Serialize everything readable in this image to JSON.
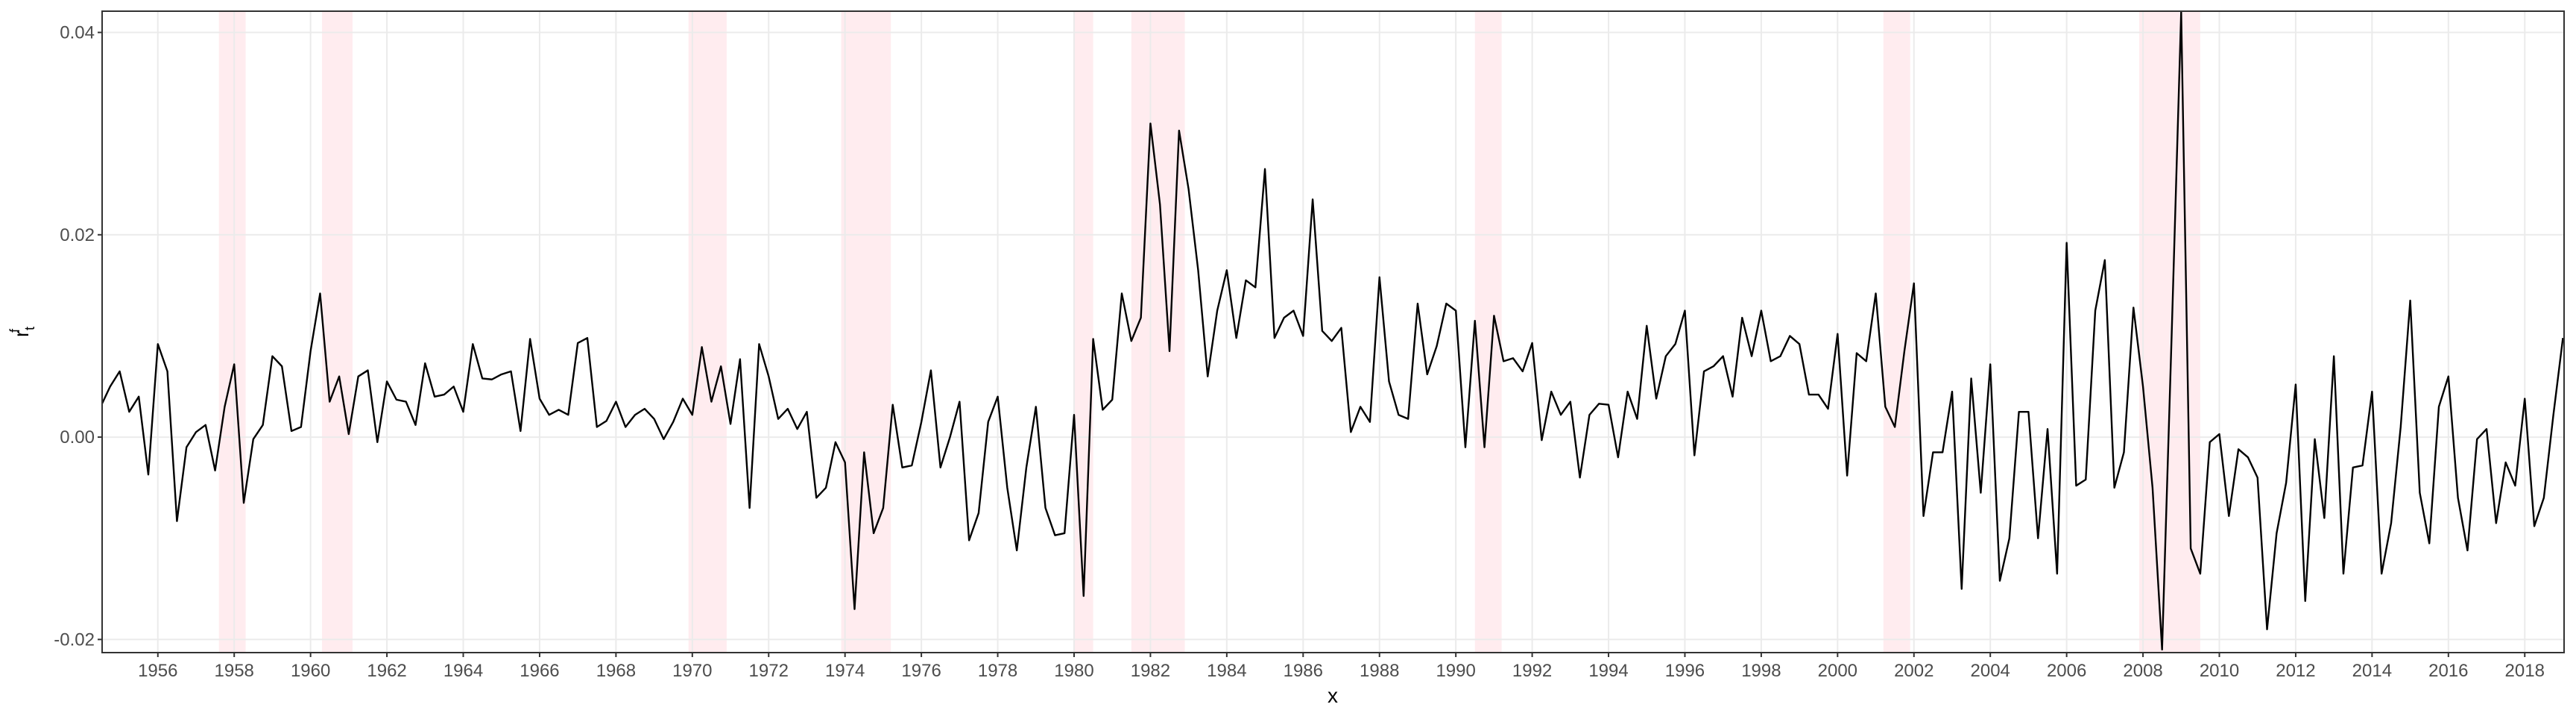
{
  "chart_data": {
    "type": "line",
    "x_label": "x",
    "y_label": "r",
    "y_label_sub": "t",
    "y_label_sup": "f",
    "xlim": [
      1954.54,
      2019.03
    ],
    "ylim": [
      -0.0213,
      0.0421
    ],
    "xticks": [
      1956,
      1958,
      1960,
      1962,
      1964,
      1966,
      1968,
      1970,
      1972,
      1974,
      1976,
      1978,
      1980,
      1982,
      1984,
      1986,
      1988,
      1990,
      1992,
      1994,
      1996,
      1998,
      2000,
      2002,
      2004,
      2006,
      2008,
      2010,
      2012,
      2014,
      2016,
      2018
    ],
    "yticks": [
      -0.02,
      {
        "value": 0,
        "label": "0.00"
      },
      0.02,
      0.04
    ],
    "grid": true,
    "shaded_regions": [
      [
        1957.6,
        1958.3
      ],
      [
        1960.3,
        1961.1
      ],
      [
        1969.9,
        1970.9
      ],
      [
        1973.9,
        1975.2
      ],
      [
        1980.0,
        1980.5
      ],
      [
        1981.5,
        1982.9
      ],
      [
        1990.5,
        1991.2
      ],
      [
        2001.2,
        2001.9
      ],
      [
        2007.9,
        2009.5
      ]
    ],
    "shade_color": "#ffc0cb",
    "x": [
      1954.5,
      1954.75,
      1955,
      1955.25,
      1955.5,
      1955.75,
      1956,
      1956.25,
      1956.5,
      1956.75,
      1957,
      1957.25,
      1957.5,
      1957.75,
      1958,
      1958.25,
      1958.5,
      1958.75,
      1959,
      1959.25,
      1959.5,
      1959.75,
      1960,
      1960.25,
      1960.5,
      1960.75,
      1961,
      1961.25,
      1961.5,
      1961.75,
      1962,
      1962.25,
      1962.5,
      1962.75,
      1963,
      1963.25,
      1963.5,
      1963.75,
      1964,
      1964.25,
      1964.5,
      1964.75,
      1965,
      1965.25,
      1965.5,
      1965.75,
      1966,
      1966.25,
      1966.5,
      1966.75,
      1967,
      1967.25,
      1967.5,
      1967.75,
      1968,
      1968.25,
      1968.5,
      1968.75,
      1969,
      1969.25,
      1969.5,
      1969.75,
      1970,
      1970.25,
      1970.5,
      1970.75,
      1971,
      1971.25,
      1971.5,
      1971.75,
      1972,
      1972.25,
      1972.5,
      1972.75,
      1973,
      1973.25,
      1973.5,
      1973.75,
      1974,
      1974.25,
      1974.5,
      1974.75,
      1975,
      1975.25,
      1975.5,
      1975.75,
      1976,
      1976.25,
      1976.5,
      1976.75,
      1977,
      1977.25,
      1977.5,
      1977.75,
      1978,
      1978.25,
      1978.5,
      1978.75,
      1979,
      1979.25,
      1979.5,
      1979.75,
      1980,
      1980.25,
      1980.5,
      1980.75,
      1981,
      1981.25,
      1981.5,
      1981.75,
      1982,
      1982.25,
      1982.5,
      1982.75,
      1983,
      1983.25,
      1983.5,
      1983.75,
      1984,
      1984.25,
      1984.5,
      1984.75,
      1985,
      1985.25,
      1985.5,
      1985.75,
      1986,
      1986.25,
      1986.5,
      1986.75,
      1987,
      1987.25,
      1987.5,
      1987.75,
      1988,
      1988.25,
      1988.5,
      1988.75,
      1989,
      1989.25,
      1989.5,
      1989.75,
      1990,
      1990.25,
      1990.5,
      1990.75,
      1991,
      1991.25,
      1991.5,
      1991.75,
      1992,
      1992.25,
      1992.5,
      1992.75,
      1993,
      1993.25,
      1993.5,
      1993.75,
      1994,
      1994.25,
      1994.5,
      1994.75,
      1995,
      1995.25,
      1995.5,
      1995.75,
      1996,
      1996.25,
      1996.5,
      1996.75,
      1997,
      1997.25,
      1997.5,
      1997.75,
      1998,
      1998.25,
      1998.5,
      1998.75,
      1999,
      1999.25,
      1999.5,
      1999.75,
      2000,
      2000.25,
      2000.5,
      2000.75,
      2001,
      2001.25,
      2001.5,
      2001.75,
      2002,
      2002.25,
      2002.5,
      2002.75,
      2003,
      2003.25,
      2003.5,
      2003.75,
      2004,
      2004.25,
      2004.5,
      2004.75,
      2005,
      2005.25,
      2005.5,
      2005.75,
      2006,
      2006.25,
      2006.5,
      2006.75,
      2007,
      2007.25,
      2007.5,
      2007.75,
      2008,
      2008.25,
      2008.5,
      2008.75,
      2009,
      2009.25,
      2009.5,
      2009.75,
      2010,
      2010.25,
      2010.5,
      2010.75,
      2011,
      2011.25,
      2011.5,
      2011.75,
      2012,
      2012.25,
      2012.5,
      2012.75,
      2013,
      2013.25,
      2013.5,
      2013.75,
      2014,
      2014.25,
      2014.5,
      2014.75,
      2015,
      2015.25,
      2015.5,
      2015.75,
      2016,
      2016.25,
      2016.5,
      2016.75,
      2017,
      2017.25,
      2017.5,
      2017.75,
      2018,
      2018.25,
      2018.5,
      2018.75,
      2019
    ],
    "color": "#000000",
    "values": [
      0.003,
      0.005,
      0.0065,
      0.0025,
      0.004,
      -0.0037,
      0.0092,
      0.0065,
      -0.0083,
      -0.001,
      0.0005,
      0.0012,
      -0.0033,
      0.003,
      0.0072,
      -0.0065,
      -0.0002,
      0.0012,
      0.008,
      0.007,
      0.0006,
      0.001,
      0.0085,
      0.0142,
      0.0035,
      0.006,
      0.0003,
      0.006,
      0.0066,
      -0.0005,
      0.0055,
      0.0037,
      0.0035,
      0.0012,
      0.0073,
      0.004,
      0.0042,
      0.005,
      0.0025,
      0.0092,
      0.0058,
      0.0057,
      0.0062,
      0.0065,
      0.0006,
      0.0097,
      0.0038,
      0.0022,
      0.0027,
      0.0022,
      0.0093,
      0.0098,
      0.001,
      0.0016,
      0.0035,
      0.001,
      0.0022,
      0.0028,
      0.0018,
      -0.0002,
      0.0015,
      0.0038,
      0.0022,
      0.0089,
      0.0035,
      0.007,
      0.0013,
      0.0077,
      -0.007,
      0.0092,
      0.006,
      0.0018,
      0.0028,
      0.0008,
      0.0025,
      -0.006,
      -0.005,
      -0.0005,
      -0.0025,
      -0.017,
      -0.0015,
      -0.0095,
      -0.007,
      0.0032,
      -0.003,
      -0.0028,
      0.0015,
      0.0066,
      -0.003,
      0.0,
      0.0035,
      -0.0102,
      -0.0075,
      0.0015,
      0.004,
      -0.005,
      -0.0112,
      -0.003,
      0.003,
      -0.007,
      -0.0097,
      -0.0095,
      0.0022,
      -0.0157,
      0.0097,
      0.0027,
      0.0037,
      0.0142,
      0.0095,
      0.0118,
      0.031,
      0.023,
      0.0085,
      0.0303,
      0.0245,
      0.0165,
      0.006,
      0.0125,
      0.0165,
      0.0098,
      0.0155,
      0.0148,
      0.0265,
      0.0098,
      0.0118,
      0.0125,
      0.01,
      0.0235,
      0.0105,
      0.0095,
      0.0108,
      0.0005,
      0.003,
      0.0015,
      0.0158,
      0.0055,
      0.0022,
      0.0018,
      0.0132,
      0.0062,
      0.009,
      0.0132,
      0.0125,
      -0.001,
      0.0115,
      -0.001,
      0.012,
      0.0075,
      0.0078,
      0.0065,
      0.0093,
      -0.0003,
      0.0045,
      0.0022,
      0.0035,
      -0.004,
      0.0022,
      0.0033,
      0.0032,
      -0.002,
      0.0045,
      0.0018,
      0.011,
      0.0038,
      0.008,
      0.0092,
      0.0125,
      -0.0018,
      0.0065,
      0.007,
      0.008,
      0.004,
      0.0118,
      0.008,
      0.0125,
      0.0075,
      0.008,
      0.01,
      0.0092,
      0.0042,
      0.0042,
      0.0028,
      0.0102,
      -0.0038,
      0.0083,
      0.0075,
      0.0142,
      0.003,
      0.001,
      0.0085,
      0.0152,
      -0.0078,
      -0.0015,
      -0.0015,
      0.0045,
      -0.015,
      0.0058,
      -0.0055,
      0.0072,
      -0.0142,
      -0.01,
      0.0025,
      0.0025,
      -0.01,
      0.0008,
      -0.0135,
      0.0192,
      -0.0048,
      -0.0042,
      0.0125,
      0.0175,
      -0.005,
      -0.0015,
      0.0128,
      0.005,
      -0.005,
      -0.021,
      0.01,
      0.042,
      -0.011,
      -0.0135,
      -0.0005,
      0.0003,
      -0.0078,
      -0.0012,
      -0.002,
      -0.004,
      -0.019,
      -0.0095,
      -0.0045,
      0.0052,
      -0.0162,
      -0.0002,
      -0.008,
      0.008,
      -0.0135,
      -0.003,
      -0.0028,
      0.0045,
      -0.0135,
      -0.0085,
      0.001,
      0.0135,
      -0.0055,
      -0.0105,
      0.003,
      0.006,
      -0.006,
      -0.0112,
      -0.0002,
      0.0008,
      -0.0085,
      -0.0025,
      -0.0048,
      0.0038,
      -0.0088,
      -0.006,
      0.0022,
      0.0098
    ]
  }
}
